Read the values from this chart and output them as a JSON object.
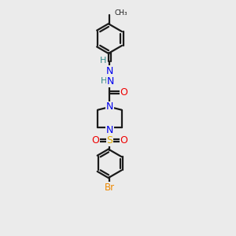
{
  "background_color": "#ebebeb",
  "bond_color": "#1a1a1a",
  "atom_colors": {
    "N": "#0000ee",
    "O": "#ee0000",
    "S": "#ddaa00",
    "Br": "#ee8800",
    "H": "#338888",
    "C": "#1a1a1a"
  },
  "figsize": [
    3.0,
    3.0
  ],
  "dpi": 100
}
